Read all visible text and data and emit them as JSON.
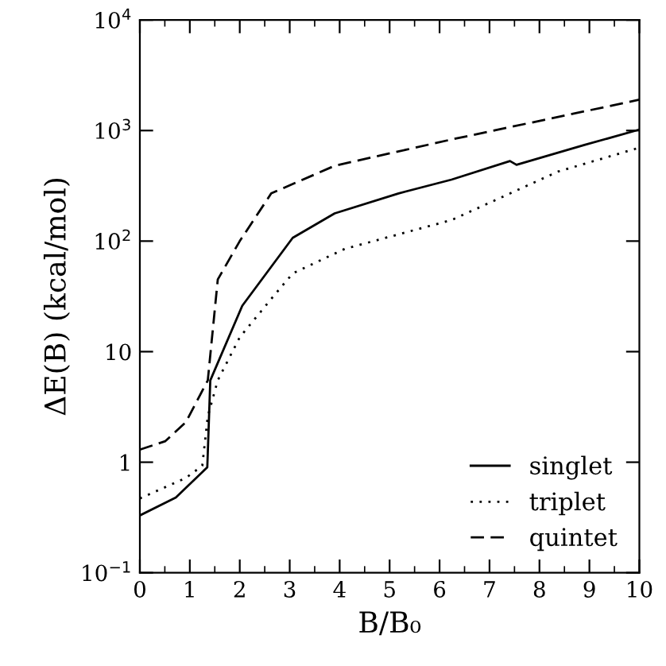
{
  "chart_data": {
    "type": "line",
    "xlabel": "B/B₀",
    "ylabel": "ΔE(B) (kcal/mol)",
    "log": "y",
    "xlim": [
      0,
      10
    ],
    "ylim": [
      0.1,
      10000
    ],
    "xticks": [
      0,
      1,
      2,
      3,
      4,
      5,
      6,
      7,
      8,
      9,
      10
    ],
    "yticks": [
      {
        "value": 0.1,
        "label": "10$^{−1}$"
      },
      1,
      10,
      {
        "value": 100,
        "label": "10$^{2}$"
      },
      {
        "value": 1000,
        "label": "10$^{3}$"
      },
      {
        "value": 10000,
        "label": "10$^{4}$"
      }
    ],
    "grid": false,
    "legend": "bottom right",
    "series": [
      {
        "name": "singlet",
        "color": "#000000",
        "line_style": "solid",
        "x": [
          0,
          0.72,
          1.35,
          1.41,
          2.05,
          3.06,
          3.9,
          5.18,
          6.24,
          7.41,
          7.54,
          8.9,
          10
        ],
        "values": [
          0.33,
          0.48,
          0.9,
          5.5,
          26,
          107,
          178,
          270,
          360,
          530,
          490,
          740,
          1020
        ]
      },
      {
        "name": "triplet",
        "color": "#000000",
        "line_style": "dotted",
        "x": [
          0,
          0.92,
          1.25,
          1.36,
          1.56,
          2.0,
          2.63,
          3.06,
          4.1,
          6.24,
          8.37,
          10
        ],
        "values": [
          0.47,
          0.72,
          0.93,
          2.6,
          5.5,
          13.5,
          30,
          51,
          85,
          155,
          425,
          700
        ]
      },
      {
        "name": "quintet",
        "color": "#000000",
        "line_style": "dashed",
        "x": [
          0,
          0.51,
          0.92,
          1.36,
          1.56,
          2.0,
          2.63,
          3.9,
          6.24,
          10
        ],
        "values": [
          1.3,
          1.55,
          2.3,
          5.5,
          45,
          100,
          270,
          480,
          830,
          1900
        ]
      }
    ]
  }
}
